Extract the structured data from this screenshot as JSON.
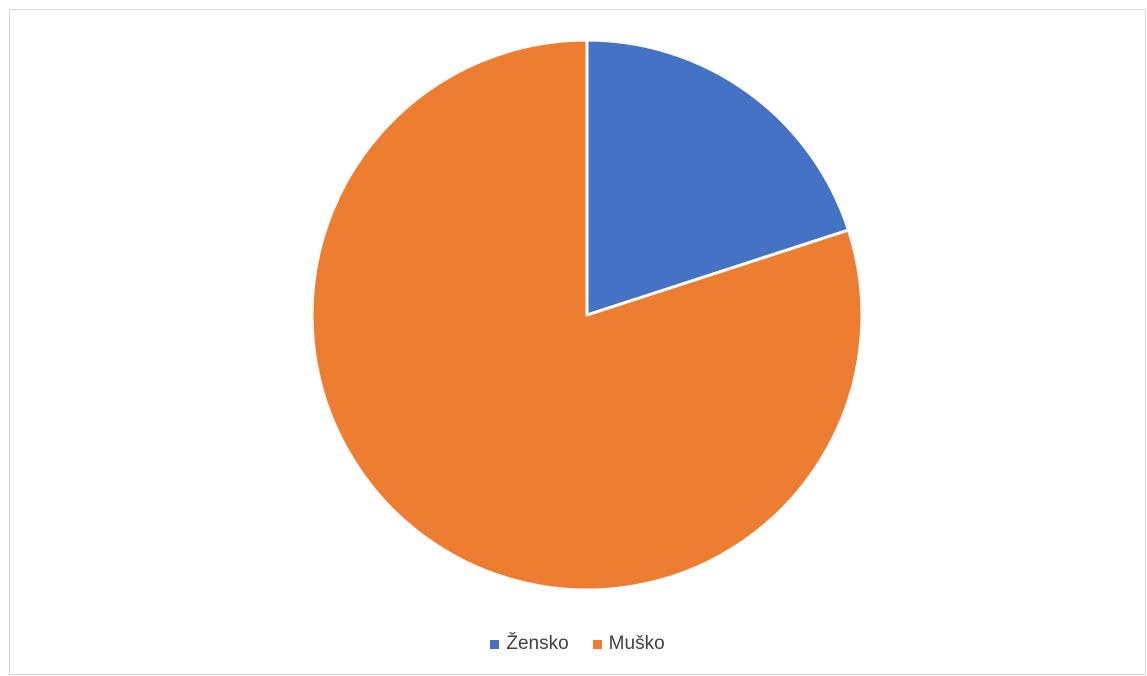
{
  "chart_data": {
    "type": "pie",
    "title": "",
    "categories": [
      "Žensko",
      "Muško"
    ],
    "values": [
      20,
      80
    ],
    "colors": [
      "#4472C4",
      "#ED7D31"
    ],
    "start_angle_deg": 0,
    "direction": "clockwise",
    "legend_position": "bottom"
  }
}
